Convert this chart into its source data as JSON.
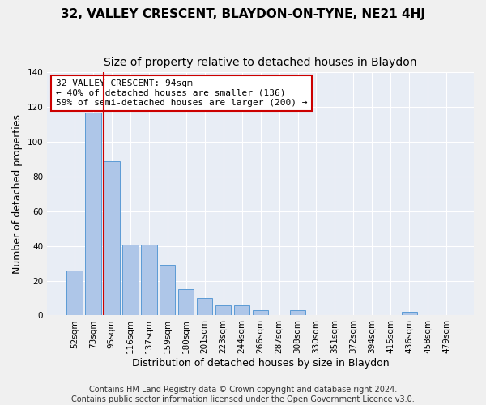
{
  "title": "32, VALLEY CRESCENT, BLAYDON-ON-TYNE, NE21 4HJ",
  "subtitle": "Size of property relative to detached houses in Blaydon",
  "xlabel": "Distribution of detached houses by size in Blaydon",
  "ylabel": "Number of detached properties",
  "footer_line1": "Contains HM Land Registry data © Crown copyright and database right 2024.",
  "footer_line2": "Contains public sector information licensed under the Open Government Licence v3.0.",
  "categories": [
    "52sqm",
    "73sqm",
    "95sqm",
    "116sqm",
    "137sqm",
    "159sqm",
    "180sqm",
    "201sqm",
    "223sqm",
    "244sqm",
    "266sqm",
    "287sqm",
    "308sqm",
    "330sqm",
    "351sqm",
    "372sqm",
    "394sqm",
    "415sqm",
    "436sqm",
    "458sqm",
    "479sqm"
  ],
  "values": [
    26,
    117,
    89,
    41,
    41,
    29,
    15,
    10,
    6,
    6,
    3,
    0,
    3,
    0,
    0,
    0,
    0,
    0,
    2,
    0,
    0
  ],
  "bar_color": "#aec6e8",
  "bar_edge_color": "#5b9bd5",
  "property_line_index": 2,
  "property_line_color": "#cc0000",
  "annotation_text": "32 VALLEY CRESCENT: 94sqm\n← 40% of detached houses are smaller (136)\n59% of semi-detached houses are larger (200) →",
  "annotation_box_facecolor": "#ffffff",
  "annotation_box_edgecolor": "#cc0000",
  "ylim": [
    0,
    140
  ],
  "yticks": [
    0,
    20,
    40,
    60,
    80,
    100,
    120,
    140
  ],
  "bg_color": "#f0f0f0",
  "plot_bg_color": "#e8edf5",
  "title_fontsize": 11,
  "subtitle_fontsize": 10,
  "xlabel_fontsize": 9,
  "ylabel_fontsize": 9,
  "tick_fontsize": 7.5,
  "annotation_fontsize": 8,
  "footer_fontsize": 7
}
